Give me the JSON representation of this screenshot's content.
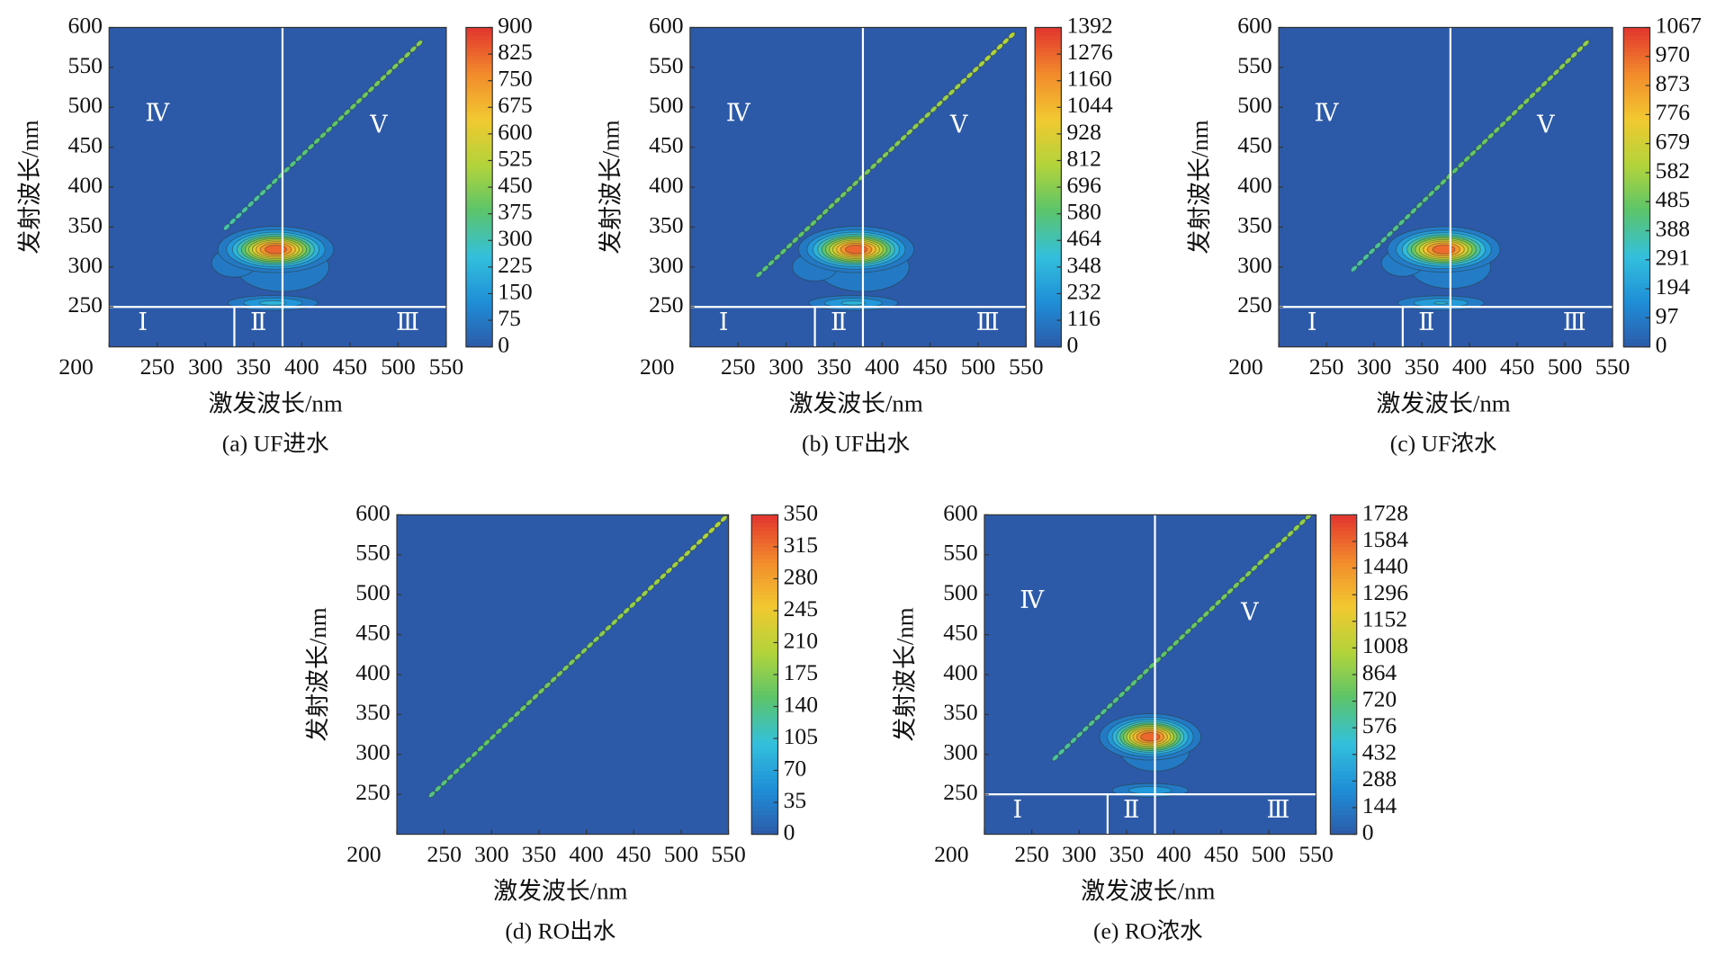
{
  "colormap": [
    "#2c5aa8",
    "#1f8fd8",
    "#33c0dc",
    "#5cc46a",
    "#b3d43a",
    "#f2c830",
    "#f28a2c",
    "#e2352e"
  ],
  "chart_data": [
    {
      "type": "contour",
      "caption": "(a) UF进水",
      "xlabel": "激发波长/nm",
      "ylabel": "发射波长/nm",
      "xlim": [
        200,
        550
      ],
      "ylim": [
        200,
        600
      ],
      "xticks": [
        200,
        250,
        300,
        350,
        400,
        450,
        500,
        550
      ],
      "yticks": [
        250,
        300,
        350,
        400,
        450,
        500,
        550,
        600
      ],
      "clim": [
        0,
        900
      ],
      "cticks": [
        0,
        75,
        150,
        225,
        300,
        375,
        450,
        525,
        600,
        675,
        750,
        825,
        900
      ],
      "peaks": [
        {
          "ex": 380,
          "em": 300,
          "value": 110,
          "ex_width": 55,
          "em_width": 35
        },
        {
          "ex": 330,
          "em": 305,
          "value": 150,
          "ex_width": 20,
          "em_width": 15
        },
        {
          "ex": 370,
          "em": 255,
          "value": 250,
          "ex_width": 30,
          "em_width": 6
        },
        {
          "ex": 373,
          "em": 322,
          "value": 900,
          "ex_width": 27,
          "em_width": 13
        }
      ],
      "scatter": {
        "ex": [
          322,
          522
        ],
        "em": [
          350,
          580
        ],
        "value": 450
      },
      "regions": {
        "labels": [
          "Ⅰ",
          "Ⅱ",
          "Ⅲ",
          "Ⅳ",
          "Ⅴ"
        ],
        "ex_split": 380,
        "ex_split_low": 330,
        "em_split": 250
      }
    },
    {
      "type": "contour",
      "caption": "(b) UF出水",
      "xlabel": "激发波长/nm",
      "ylabel": "发射波长/nm",
      "xlim": [
        200,
        550
      ],
      "ylim": [
        200,
        600
      ],
      "xticks": [
        200,
        250,
        300,
        350,
        400,
        450,
        500,
        550
      ],
      "yticks": [
        250,
        300,
        350,
        400,
        450,
        500,
        550,
        600
      ],
      "clim": [
        0,
        1392
      ],
      "cticks": [
        0,
        116,
        232,
        348,
        464,
        580,
        696,
        812,
        928,
        1044,
        1160,
        1276,
        1392
      ],
      "peaks": [
        {
          "ex": 380,
          "em": 300,
          "value": 170,
          "ex_width": 55,
          "em_width": 35
        },
        {
          "ex": 330,
          "em": 300,
          "value": 230,
          "ex_width": 20,
          "em_width": 15
        },
        {
          "ex": 370,
          "em": 255,
          "value": 380,
          "ex_width": 30,
          "em_width": 6
        },
        {
          "ex": 373,
          "em": 322,
          "value": 1392,
          "ex_width": 27,
          "em_width": 13
        }
      ],
      "scatter": {
        "ex": [
          272,
          535
        ],
        "em": [
          291,
          590
        ],
        "value": 800
      },
      "regions": {
        "labels": [
          "Ⅰ",
          "Ⅱ",
          "Ⅲ",
          "Ⅳ",
          "Ⅴ"
        ],
        "ex_split": 380,
        "ex_split_low": 330,
        "em_split": 250
      }
    },
    {
      "type": "contour",
      "caption": "(c) UF浓水",
      "xlabel": "激发波长/nm",
      "ylabel": "发射波长/nm",
      "xlim": [
        200,
        550
      ],
      "ylim": [
        200,
        600
      ],
      "xticks": [
        200,
        250,
        300,
        350,
        400,
        450,
        500,
        550
      ],
      "yticks": [
        250,
        300,
        350,
        400,
        450,
        500,
        550,
        600
      ],
      "clim": [
        0,
        1067
      ],
      "cticks": [
        0,
        97,
        194,
        291,
        388,
        485,
        582,
        679,
        776,
        873,
        970,
        1067
      ],
      "peaks": [
        {
          "ex": 380,
          "em": 300,
          "value": 130,
          "ex_width": 55,
          "em_width": 35
        },
        {
          "ex": 330,
          "em": 305,
          "value": 180,
          "ex_width": 20,
          "em_width": 15
        },
        {
          "ex": 370,
          "em": 255,
          "value": 300,
          "ex_width": 30,
          "em_width": 6
        },
        {
          "ex": 373,
          "em": 322,
          "value": 1067,
          "ex_width": 27,
          "em_width": 13
        }
      ],
      "scatter": {
        "ex": [
          279,
          522
        ],
        "em": [
          298,
          580
        ],
        "value": 550
      },
      "regions": {
        "labels": [
          "Ⅰ",
          "Ⅱ",
          "Ⅲ",
          "Ⅳ",
          "Ⅴ"
        ],
        "ex_split": 380,
        "ex_split_low": 330,
        "em_split": 250
      }
    },
    {
      "type": "contour",
      "caption": "(d) RO出水",
      "xlabel": "激发波长/nm",
      "ylabel": "发射波长/nm",
      "xlim": [
        200,
        550
      ],
      "ylim": [
        200,
        600
      ],
      "xticks": [
        200,
        250,
        300,
        350,
        400,
        450,
        500,
        550
      ],
      "yticks": [
        250,
        300,
        350,
        400,
        450,
        500,
        550,
        600
      ],
      "clim": [
        0,
        350
      ],
      "cticks": [
        0,
        35,
        70,
        105,
        140,
        175,
        210,
        245,
        280,
        315,
        350
      ],
      "peaks": [
        {
          "ex": 400,
          "em": 300,
          "value": 30,
          "ex_width": 60,
          "em_width": 30
        }
      ],
      "scatter": {
        "ex": [
          237,
          545
        ],
        "em": [
          250,
          595
        ],
        "value": 200
      }
    },
    {
      "type": "contour",
      "caption": "(e) RO浓水",
      "xlabel": "激发波长/nm",
      "ylabel": "发射波长/nm",
      "xlim": [
        200,
        550
      ],
      "ylim": [
        200,
        600
      ],
      "xticks": [
        200,
        250,
        300,
        350,
        400,
        450,
        500,
        550
      ],
      "yticks": [
        250,
        300,
        350,
        400,
        450,
        500,
        550,
        600
      ],
      "clim": [
        0,
        1728
      ],
      "cticks": [
        0,
        144,
        288,
        432,
        576,
        720,
        864,
        1008,
        1152,
        1296,
        1440,
        1584,
        1728
      ],
      "peaks": [
        {
          "ex": 380,
          "em": 305,
          "value": 200,
          "ex_width": 45,
          "em_width": 32
        },
        {
          "ex": 375,
          "em": 255,
          "value": 400,
          "ex_width": 28,
          "em_width": 6
        },
        {
          "ex": 375,
          "em": 322,
          "value": 1728,
          "ex_width": 24,
          "em_width": 13
        }
      ],
      "scatter": {
        "ex": [
          275,
          542
        ],
        "em": [
          296,
          598
        ],
        "value": 900
      },
      "regions": {
        "labels": [
          "Ⅰ",
          "Ⅱ",
          "Ⅲ",
          "Ⅳ",
          "Ⅴ"
        ],
        "ex_split": 380,
        "ex_split_low": 330,
        "em_split": 250
      }
    }
  ]
}
